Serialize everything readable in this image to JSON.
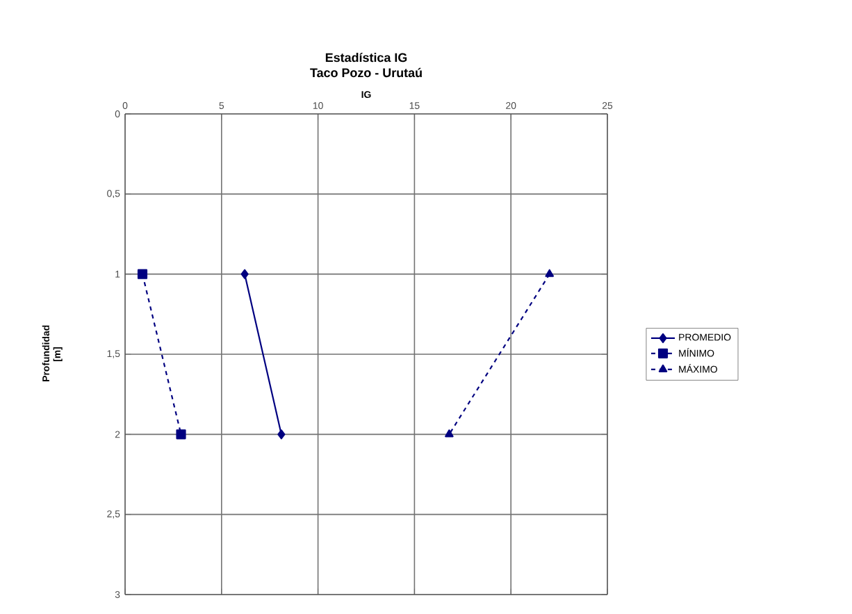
{
  "chart_data": {
    "type": "line",
    "title": "Estadística IG",
    "subtitle": "Taco Pozo - Urutaú",
    "xlabel": "IG",
    "ylabel": "Profundidad [m]",
    "series": [
      {
        "name": "PROMEDIO",
        "color": "#000080",
        "x": [
          6.2,
          8.1
        ],
        "values": [
          1,
          2
        ],
        "marker": "diamond",
        "line_style": "solid"
      },
      {
        "name": "MÍNIMO",
        "color": "#000080",
        "x": [
          0.9,
          2.9
        ],
        "values": [
          1,
          2
        ],
        "marker": "square",
        "line_style": "dashed"
      },
      {
        "name": "MÁXIMO",
        "color": "#000080",
        "x": [
          22.0,
          16.8
        ],
        "values": [
          1,
          2
        ],
        "marker": "triangle",
        "line_style": "dashed"
      }
    ],
    "xlim": [
      0,
      25
    ],
    "xticks": [
      0,
      5,
      10,
      15,
      20,
      25
    ],
    "ylim": [
      3,
      0
    ],
    "yticks": [
      0,
      {
        "value": 0.5,
        "label": "0,5"
      },
      1,
      {
        "value": 1.5,
        "label": "1,5"
      },
      2,
      {
        "value": 2.5,
        "label": "2,5"
      },
      3
    ],
    "grid": true,
    "legend": "right"
  }
}
